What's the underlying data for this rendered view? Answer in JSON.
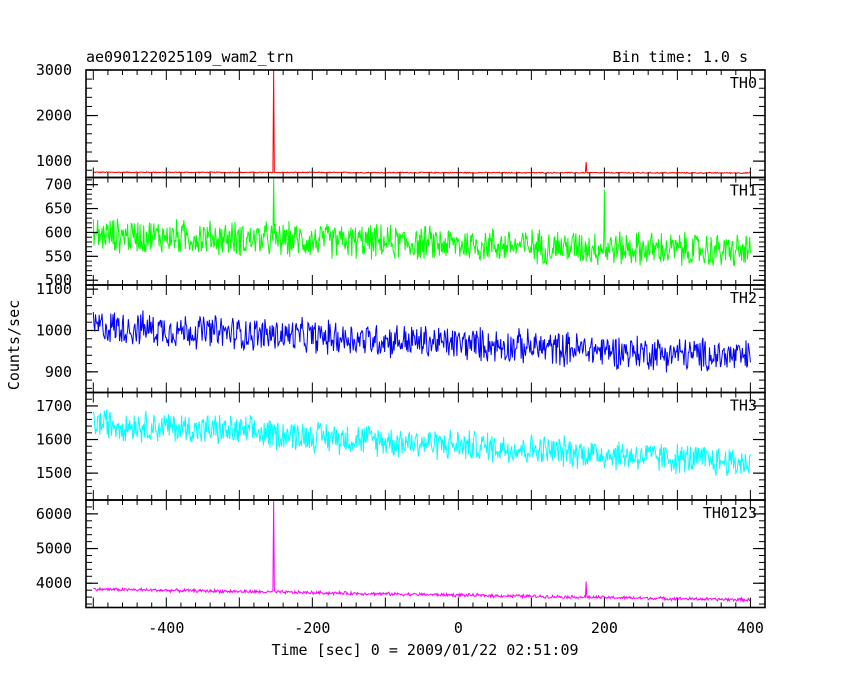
{
  "header": {
    "title": "ae090122025109_wam2_trn",
    "bin_time": "Bin time: 1.0 s"
  },
  "chart_data": {
    "type": "line",
    "xlabel": "Time [sec] 0 = 2009/01/22 02:51:09",
    "ylabel": "Counts/sec",
    "xlim": [
      -510,
      420
    ],
    "x_ticks": [
      "-400",
      "-200",
      "0",
      "200",
      "400"
    ],
    "x_tick_values": [
      -400,
      -200,
      0,
      200,
      400
    ],
    "panels": [
      {
        "name": "TH0",
        "color": "#ff0000",
        "ylim": [
          640,
          3000
        ],
        "ticks": [
          1000,
          2000,
          3000
        ],
        "tick_labels": [
          "1000",
          "2000",
          "3000"
        ],
        "baseline": [
          [
            -500,
            755
          ],
          [
            400,
            740
          ]
        ],
        "noise": 12,
        "spikes": [
          [
            -253,
            3000
          ],
          [
            175,
            980
          ]
        ]
      },
      {
        "name": "TH1",
        "color": "#00ff00",
        "ylim": [
          490,
          715
        ],
        "ticks": [
          500,
          550,
          600,
          650,
          700
        ],
        "tick_labels": [
          "500",
          "550",
          "600",
          "650",
          "700"
        ],
        "baseline": [
          [
            -500,
            595
          ],
          [
            400,
            560
          ]
        ],
        "noise": 35,
        "spikes": [
          [
            -253,
            715
          ],
          [
            200,
            690
          ]
        ]
      },
      {
        "name": "TH2",
        "color": "#0000ff",
        "ylim": [
          850,
          1110
        ],
        "ticks": [
          900,
          1000,
          1100
        ],
        "tick_labels": [
          "900",
          "1000",
          "1100"
        ],
        "baseline": [
          [
            -500,
            1010
          ],
          [
            400,
            935
          ]
        ],
        "noise": 40,
        "spikes": []
      },
      {
        "name": "TH3",
        "color": "#00ffff",
        "ylim": [
          1420,
          1740
        ],
        "ticks": [
          1500,
          1600,
          1700
        ],
        "tick_labels": [
          "1500",
          "1600",
          "1700"
        ],
        "baseline": [
          [
            -500,
            1650
          ],
          [
            400,
            1530
          ]
        ],
        "noise": 45,
        "spikes": []
      },
      {
        "name": "TH0123",
        "color": "#ff00ff",
        "ylim": [
          3300,
          6400
        ],
        "ticks": [
          4000,
          5000,
          6000
        ],
        "tick_labels": [
          "4000",
          "5000",
          "6000"
        ],
        "baseline": [
          [
            -500,
            3830
          ],
          [
            400,
            3520
          ]
        ],
        "noise": 45,
        "spikes": [
          [
            -253,
            6400
          ],
          [
            175,
            4050
          ]
        ]
      }
    ]
  }
}
